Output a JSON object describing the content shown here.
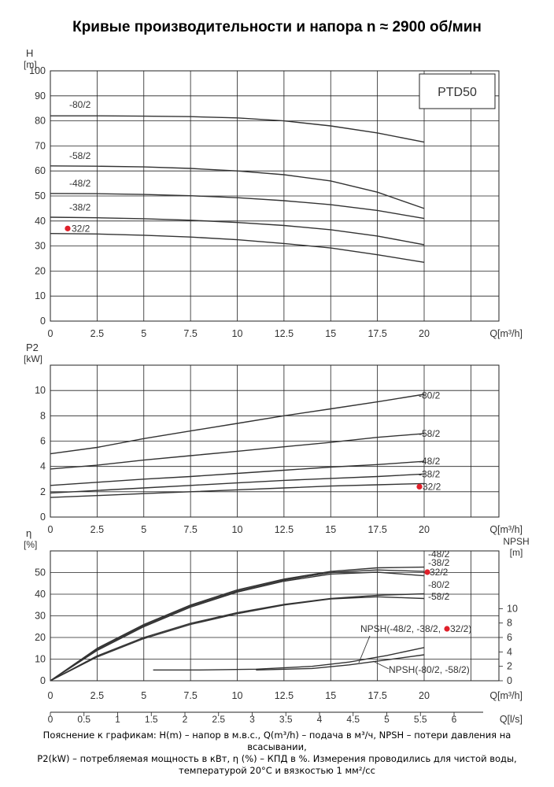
{
  "title": "Кривые производительности и напора n ≈ 2900 об/мин",
  "footnote": {
    "line1": "Пояснение к графикам: H(m) – напор в м.в.с., Q(m³/h) – подача в м³/ч, NPSH – потери давления на всасывании,",
    "line2": "P2(kW) – потребляемая мощность в кВт, η (%) – КПД в %. Измерения проводились для чистой воды,",
    "line3": "температурой 20°C и вязкостью 1 мм²/сс"
  },
  "colors": {
    "curve": "#333333",
    "grid": "#222222",
    "marker": "#e0202a"
  },
  "chart_data": [
    {
      "type": "line",
      "id": "head",
      "model_label": "PTD50",
      "ylabel": "H",
      "yunit": "[m]",
      "xlabel": "Q[m³/h]",
      "xlim": [
        0,
        24
      ],
      "ylim": [
        0,
        100
      ],
      "xticks": [
        "0",
        "2.5",
        "5",
        "7.5",
        "10",
        "12.5",
        "15",
        "17.5",
        "20"
      ],
      "yticks": [
        "0",
        "10",
        "20",
        "30",
        "40",
        "50",
        "60",
        "70",
        "80",
        "90",
        "100"
      ],
      "highlight": "32/2",
      "series": [
        {
          "name": "-80/2",
          "points": [
            [
              0,
              82
            ],
            [
              2.5,
              82
            ],
            [
              5,
              81.9
            ],
            [
              7.5,
              81.7
            ],
            [
              10,
              81.2
            ],
            [
              12.5,
              80
            ],
            [
              15,
              78
            ],
            [
              17.5,
              75.2
            ],
            [
              20,
              71.5
            ]
          ]
        },
        {
          "name": "-58/2",
          "points": [
            [
              0,
              62
            ],
            [
              2.5,
              61.9
            ],
            [
              5,
              61.6
            ],
            [
              7.5,
              61
            ],
            [
              10,
              60
            ],
            [
              12.5,
              58.5
            ],
            [
              15,
              56
            ],
            [
              17.5,
              51.5
            ],
            [
              20,
              45
            ]
          ]
        },
        {
          "name": "-48/2",
          "points": [
            [
              0,
              51
            ],
            [
              2.5,
              50.9
            ],
            [
              5,
              50.6
            ],
            [
              7.5,
              50.1
            ],
            [
              10,
              49.3
            ],
            [
              12.5,
              48.1
            ],
            [
              15,
              46.5
            ],
            [
              17.5,
              44.2
            ],
            [
              20,
              41
            ]
          ]
        },
        {
          "name": "-38/2",
          "points": [
            [
              0,
              41.5
            ],
            [
              2.5,
              41.3
            ],
            [
              5,
              40.9
            ],
            [
              7.5,
              40.3
            ],
            [
              10,
              39.4
            ],
            [
              12.5,
              38.2
            ],
            [
              15,
              36.5
            ],
            [
              17.5,
              34
            ],
            [
              20,
              30.5
            ]
          ]
        },
        {
          "name": "32/2",
          "points": [
            [
              0,
              35
            ],
            [
              2.5,
              34.8
            ],
            [
              5,
              34.3
            ],
            [
              7.5,
              33.6
            ],
            [
              10,
              32.5
            ],
            [
              12.5,
              31
            ],
            [
              15,
              29.2
            ],
            [
              17.5,
              26.5
            ],
            [
              20,
              23.5
            ]
          ]
        }
      ]
    },
    {
      "type": "line",
      "id": "power",
      "ylabel": "P2",
      "yunit": "[kW]",
      "xlabel": "Q[m³/h]",
      "xlim": [
        0,
        24
      ],
      "ylim": [
        0,
        12
      ],
      "xticks": [
        "0",
        "2.5",
        "5",
        "7.5",
        "10",
        "12.5",
        "15",
        "17.5",
        "20"
      ],
      "yticks": [
        "0",
        "2",
        "4",
        "6",
        "8",
        "10"
      ],
      "highlight": "32/2",
      "series": [
        {
          "name": "-80/2",
          "points": [
            [
              0,
              5
            ],
            [
              2.5,
              5.5
            ],
            [
              5,
              6.2
            ],
            [
              7.5,
              6.8
            ],
            [
              10,
              7.4
            ],
            [
              12.5,
              8
            ],
            [
              15,
              8.55
            ],
            [
              17.5,
              9.1
            ],
            [
              20,
              9.7
            ]
          ]
        },
        {
          "name": "-58/2",
          "points": [
            [
              0,
              3.8
            ],
            [
              2.5,
              4.1
            ],
            [
              5,
              4.5
            ],
            [
              7.5,
              4.85
            ],
            [
              10,
              5.2
            ],
            [
              12.5,
              5.55
            ],
            [
              15,
              5.9
            ],
            [
              17.5,
              6.3
            ],
            [
              20,
              6.6
            ]
          ]
        },
        {
          "name": "-48/2",
          "points": [
            [
              0,
              2.5
            ],
            [
              2.5,
              2.75
            ],
            [
              5,
              3.0
            ],
            [
              7.5,
              3.2
            ],
            [
              10,
              3.45
            ],
            [
              12.5,
              3.7
            ],
            [
              15,
              3.95
            ],
            [
              17.5,
              4.15
            ],
            [
              20,
              4.4
            ]
          ]
        },
        {
          "name": "-38/2",
          "points": [
            [
              0,
              1.9
            ],
            [
              2.5,
              2.1
            ],
            [
              5,
              2.3
            ],
            [
              7.5,
              2.5
            ],
            [
              10,
              2.7
            ],
            [
              12.5,
              2.9
            ],
            [
              15,
              3.05
            ],
            [
              17.5,
              3.2
            ],
            [
              20,
              3.4
            ]
          ]
        },
        {
          "name": "32/2",
          "points": [
            [
              0,
              1.55
            ],
            [
              2.5,
              1.7
            ],
            [
              5,
              1.85
            ],
            [
              7.5,
              2.0
            ],
            [
              10,
              2.15
            ],
            [
              12.5,
              2.3
            ],
            [
              15,
              2.45
            ],
            [
              17.5,
              2.55
            ],
            [
              20,
              2.65
            ]
          ]
        }
      ]
    },
    {
      "type": "line",
      "id": "efficiency",
      "ylabel": "η",
      "yunit": "[%]",
      "y2label": "NPSH",
      "y2unit": "[m]",
      "xlabel": "Q[m³/h]",
      "x2label": "Q[l/s]",
      "xlim": [
        0,
        24
      ],
      "ylim": [
        0,
        60
      ],
      "y2lim": [
        0,
        18
      ],
      "xticks": [
        "0",
        "2.5",
        "5",
        "7.5",
        "10",
        "12.5",
        "15",
        "17.5",
        "20"
      ],
      "x2ticks": [
        "0",
        "0.5",
        "1",
        "1.5",
        "2",
        "2.5",
        "3",
        "3.5",
        "4",
        "4.5",
        "5",
        "5.5",
        "6"
      ],
      "yticks": [
        "0",
        "10",
        "20",
        "30",
        "40",
        "50"
      ],
      "y2ticks": [
        "0",
        "2",
        "4",
        "6",
        "8",
        "10"
      ],
      "highlight": "32/2",
      "series": [
        {
          "name": "-48/2",
          "points": [
            [
              0,
              0
            ],
            [
              2.5,
              15
            ],
            [
              5,
              26
            ],
            [
              7.5,
              35
            ],
            [
              10,
              42
            ],
            [
              12.5,
              47
            ],
            [
              15,
              50.5
            ],
            [
              17.5,
              52.2
            ],
            [
              20,
              52.5
            ]
          ]
        },
        {
          "name": "-38/2",
          "points": [
            [
              0,
              0
            ],
            [
              2.5,
              14.5
            ],
            [
              5,
              25.5
            ],
            [
              7.5,
              34.5
            ],
            [
              10,
              41.5
            ],
            [
              12.5,
              46.5
            ],
            [
              15,
              50
            ],
            [
              17.5,
              51.2
            ],
            [
              20,
              50.5
            ]
          ]
        },
        {
          "name": "32/2",
          "points": [
            [
              0,
              0
            ],
            [
              2.5,
              14
            ],
            [
              5,
              25
            ],
            [
              7.5,
              34
            ],
            [
              10,
              41
            ],
            [
              12.5,
              46
            ],
            [
              15,
              49.3
            ],
            [
              17.5,
              50.2
            ],
            [
              20,
              48.5
            ]
          ]
        },
        {
          "name": "-80/2",
          "points": [
            [
              0,
              0
            ],
            [
              2.5,
              11.5
            ],
            [
              5,
              20
            ],
            [
              7.5,
              26.5
            ],
            [
              10,
              31.5
            ],
            [
              12.5,
              35.3
            ],
            [
              15,
              38
            ],
            [
              17.5,
              39.5
            ],
            [
              20,
              40.2
            ]
          ]
        },
        {
          "name": "-58/2",
          "points": [
            [
              0,
              0
            ],
            [
              2.5,
              11
            ],
            [
              5,
              19.5
            ],
            [
              7.5,
              26
            ],
            [
              10,
              31
            ],
            [
              12.5,
              35
            ],
            [
              15,
              37.8
            ],
            [
              17.5,
              38.8
            ],
            [
              20,
              38
            ]
          ]
        }
      ],
      "npsh_series": [
        {
          "name": "NPSH(-48/2, -38/2, 32/2)",
          "points": [
            [
              5.5,
              1.5
            ],
            [
              8,
              1.5
            ],
            [
              11,
              1.6
            ],
            [
              14,
              2.0
            ],
            [
              16,
              2.6
            ],
            [
              18,
              3.5
            ],
            [
              20,
              4.6
            ]
          ]
        },
        {
          "name": "NPSH(-80/2, -58/2)",
          "points": [
            [
              11,
              1.5
            ],
            [
              14,
              1.7
            ],
            [
              16,
              2.2
            ],
            [
              18,
              2.9
            ],
            [
              20,
              3.6
            ]
          ]
        }
      ]
    }
  ]
}
